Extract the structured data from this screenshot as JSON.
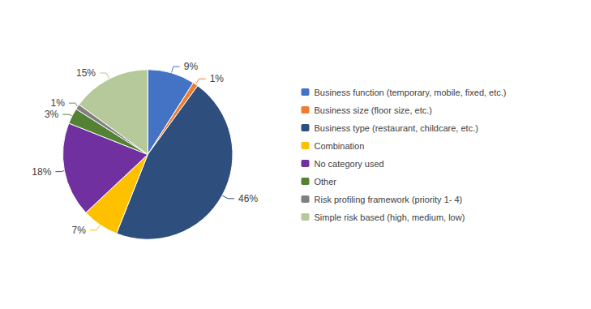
{
  "chart_data": {
    "type": "pie",
    "categories": [
      "Business function (temporary, mobile, fixed, etc.)",
      "Business size (floor size, etc.)",
      "Business type (restaurant, childcare, etc.)",
      "Combination",
      "No category used",
      "Other",
      "Risk profiling framework (priority 1- 4)",
      "Simple risk based (high, medium, low)"
    ],
    "values": [
      9,
      1,
      46,
      7,
      18,
      3,
      1,
      15
    ],
    "value_labels": [
      "9%",
      "1%",
      "46%",
      "7%",
      "18%",
      "3%",
      "1%",
      "15%"
    ],
    "colors": [
      "#4472C4",
      "#ED7D31",
      "#2E4E7E",
      "#FFC000",
      "#7030A0",
      "#548235",
      "#808080",
      "#B5C99A"
    ],
    "data_labels": true,
    "legend": "right"
  }
}
